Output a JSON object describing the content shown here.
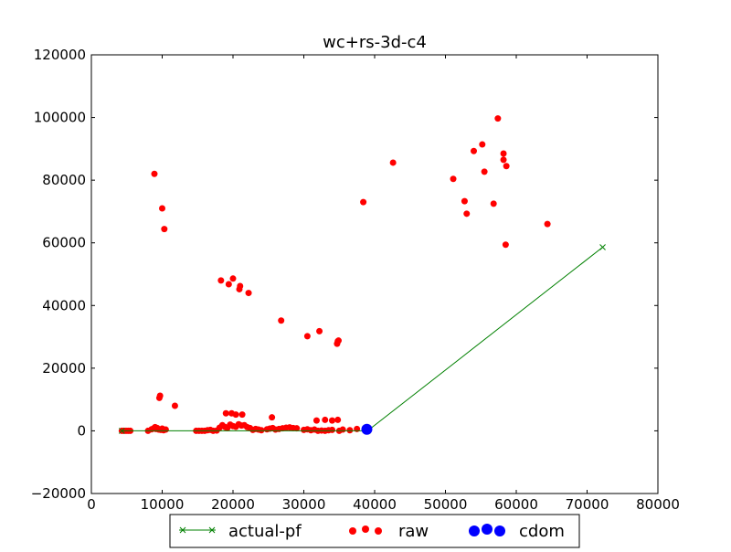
{
  "chart_data": {
    "type": "scatter",
    "title": "wc+rs-3d-c4",
    "xlabel": "",
    "ylabel": "",
    "xlim": [
      0,
      80000
    ],
    "ylim": [
      -20000,
      120000
    ],
    "x_ticks": [
      0,
      10000,
      20000,
      30000,
      40000,
      50000,
      60000,
      70000,
      80000
    ],
    "y_ticks": [
      -20000,
      0,
      20000,
      40000,
      60000,
      80000,
      100000,
      120000
    ],
    "x_tick_labels": [
      "0",
      "10000",
      "20000",
      "30000",
      "40000",
      "50000",
      "60000",
      "70000",
      "80000"
    ],
    "y_tick_labels": [
      "−20000",
      "0",
      "20000",
      "40000",
      "60000",
      "80000",
      "100000",
      "120000"
    ],
    "grid": false,
    "legend_position": "bottom-center",
    "legend_labels": [
      "actual-pf",
      "raw",
      "cdom"
    ],
    "series": [
      {
        "name": "raw",
        "kind": "scatter",
        "color": "#ff0000",
        "x": [
          4300,
          4600,
          4900,
          5200,
          5500,
          8000,
          8500,
          8800,
          9000,
          9100,
          9300,
          9500,
          9800,
          10000,
          10200,
          10500,
          8900,
          9600,
          9700,
          11800,
          10000,
          10300,
          14800,
          15200,
          15600,
          16000,
          16400,
          16800,
          17200,
          17700,
          18100,
          18500,
          18900,
          19200,
          19600,
          20000,
          20400,
          20800,
          21200,
          21600,
          22000,
          22400,
          22800,
          23200,
          23600,
          24000,
          24800,
          25200,
          25600,
          26000,
          26500,
          27000,
          27500,
          28000,
          28500,
          29000,
          30000,
          30500,
          31000,
          31500,
          32000,
          32500,
          33000,
          33500,
          34000,
          35000,
          35500,
          36500,
          37500,
          18300,
          19400,
          20000,
          20900,
          21000,
          22200,
          19000,
          19800,
          20400,
          21300,
          25500,
          26800,
          30500,
          32200,
          34700,
          34900,
          34800,
          31800,
          33000,
          34000,
          34800,
          38400,
          42600,
          51100,
          52700,
          53000,
          54000,
          55200,
          55500,
          56800,
          57400,
          58200,
          58200,
          58600,
          58500,
          64400
        ],
        "y": [
          0,
          0,
          0,
          0,
          0,
          0,
          500,
          800,
          1200,
          600,
          900,
          400,
          300,
          700,
          200,
          400,
          82000,
          10500,
          11200,
          8000,
          71000,
          64400,
          0,
          0,
          0,
          0,
          200,
          300,
          0,
          100,
          1000,
          1800,
          1200,
          900,
          2000,
          1500,
          1300,
          2100,
          1700,
          1800,
          1200,
          900,
          300,
          600,
          400,
          200,
          500,
          700,
          900,
          400,
          600,
          800,
          1000,
          1100,
          900,
          800,
          300,
          500,
          200,
          400,
          0,
          100,
          0,
          200,
          300,
          0,
          400,
          200,
          600,
          48000,
          46800,
          48600,
          45200,
          46200,
          44000,
          5600,
          5600,
          5200,
          5200,
          4300,
          35200,
          30200,
          31800,
          27800,
          28800,
          28600,
          3300,
          3500,
          3300,
          3500,
          73000,
          85600,
          80400,
          73300,
          69300,
          89300,
          91400,
          82700,
          72500,
          99700,
          88500,
          86500,
          84500,
          59400,
          66000
        ]
      },
      {
        "name": "actual-pf",
        "kind": "line",
        "color": "#008000",
        "x": [
          4300,
          39000,
          72200
        ],
        "y": [
          0,
          0,
          58600
        ]
      },
      {
        "name": "cdom",
        "kind": "scatter",
        "color": "#0000ff",
        "x": [
          38900
        ],
        "y": [
          500
        ]
      }
    ]
  }
}
